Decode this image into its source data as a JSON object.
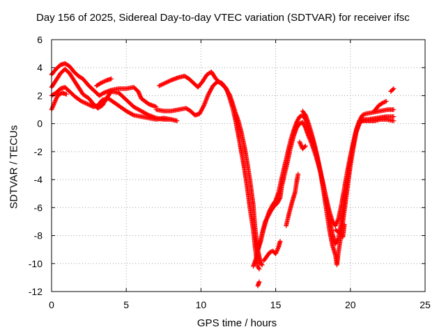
{
  "chart_data": {
    "type": "scatter",
    "title": "Day 156 of 2025, Sidereal Day-to-day VTEC variation (SDTVAR) for receiver ifsc",
    "xlabel": "GPS time / hours",
    "ylabel": "SDTVAR / TECUs",
    "xlim": [
      0,
      25
    ],
    "ylim": [
      -12,
      6
    ],
    "xticks": [
      0,
      5,
      10,
      15,
      20,
      25
    ],
    "yticks": [
      -12,
      -10,
      -8,
      -6,
      -4,
      -2,
      0,
      2,
      4,
      6
    ],
    "grid": true,
    "marker": "plus",
    "color": "#ff0000",
    "series": [
      {
        "points": [
          [
            0,
            3.5
          ],
          [
            0.3,
            3.9
          ],
          [
            0.6,
            4.2
          ],
          [
            0.9,
            4.3
          ],
          [
            1.2,
            4.1
          ],
          [
            1.5,
            3.7
          ],
          [
            1.8,
            3.4
          ],
          [
            2.1,
            3.2
          ],
          [
            2.5,
            2.7
          ],
          [
            2.9,
            2.3
          ],
          [
            3.2,
            2.0
          ],
          [
            3.5,
            2.2
          ],
          [
            4.0,
            2.4
          ],
          [
            4.5,
            2.5
          ],
          [
            5.0,
            2.5
          ],
          [
            5.5,
            2.6
          ],
          [
            5.8,
            2.3
          ],
          [
            6.0,
            1.8
          ],
          [
            6.5,
            1.4
          ],
          [
            7.0,
            1.2
          ]
        ]
      },
      {
        "points": [
          [
            0,
            2.6
          ],
          [
            0.3,
            3.1
          ],
          [
            0.6,
            3.6
          ],
          [
            0.9,
            3.9
          ],
          [
            1.2,
            3.6
          ],
          [
            1.5,
            3.1
          ],
          [
            1.8,
            2.6
          ],
          [
            2.1,
            2.1
          ],
          [
            2.5,
            1.8
          ],
          [
            2.8,
            1.4
          ],
          [
            3.1,
            1.1
          ],
          [
            3.4,
            1.3
          ],
          [
            3.8,
            2.0
          ],
          [
            4.0,
            2.3
          ],
          [
            4.5,
            2.2
          ],
          [
            5.0,
            1.7
          ],
          [
            5.5,
            1.2
          ],
          [
            6.0,
            0.9
          ],
          [
            6.5,
            0.6
          ],
          [
            7.0,
            0.4
          ],
          [
            7.5,
            0.3
          ],
          [
            8.0,
            0.3
          ]
        ]
      },
      {
        "points": [
          [
            0,
            2.0
          ],
          [
            0.3,
            2.2
          ],
          [
            0.6,
            2.5
          ],
          [
            0.9,
            2.6
          ],
          [
            1.2,
            2.3
          ],
          [
            1.6,
            1.9
          ],
          [
            2.0,
            1.6
          ],
          [
            2.4,
            1.4
          ],
          [
            2.8,
            1.2
          ],
          [
            3.1,
            1.3
          ],
          [
            3.4,
            1.7
          ],
          [
            3.8,
            1.8
          ],
          [
            4.2,
            1.5
          ],
          [
            4.6,
            1.2
          ],
          [
            5.0,
            0.9
          ],
          [
            5.5,
            0.6
          ],
          [
            6.0,
            0.5
          ],
          [
            6.5,
            0.4
          ],
          [
            7.0,
            0.3
          ],
          [
            7.5,
            0.4
          ],
          [
            8.0,
            0.3
          ],
          [
            8.4,
            0.2
          ]
        ]
      },
      {
        "points": [
          [
            0,
            1.0
          ],
          [
            0.2,
            1.5
          ],
          [
            0.4,
            2.0
          ],
          [
            0.7,
            2.2
          ],
          [
            1.0,
            2.1
          ]
        ]
      },
      {
        "points": [
          [
            3.0,
            2.7
          ],
          [
            3.3,
            2.9
          ],
          [
            3.7,
            3.1
          ],
          [
            4.0,
            3.2
          ]
        ]
      },
      {
        "points": [
          [
            7.2,
            2.7
          ],
          [
            7.6,
            2.9
          ],
          [
            8.0,
            3.1
          ],
          [
            8.5,
            3.3
          ],
          [
            8.9,
            3.4
          ],
          [
            9.2,
            3.2
          ],
          [
            9.5,
            2.9
          ],
          [
            9.8,
            2.6
          ],
          [
            10.1,
            3.0
          ],
          [
            10.4,
            3.5
          ],
          [
            10.7,
            3.7
          ],
          [
            11.0,
            3.2
          ],
          [
            11.3,
            2.9
          ],
          [
            11.6,
            2.6
          ],
          [
            11.9,
            2.1
          ],
          [
            12.1,
            1.5
          ],
          [
            12.3,
            0.8
          ],
          [
            12.5,
            0.2
          ],
          [
            12.7,
            -0.6
          ],
          [
            12.9,
            -1.6
          ],
          [
            13.1,
            -2.8
          ],
          [
            13.3,
            -4.2
          ],
          [
            13.5,
            -5.8
          ],
          [
            13.6,
            -7.2
          ],
          [
            13.7,
            -8.2
          ],
          [
            13.8,
            -9.0
          ],
          [
            13.9,
            -9.5
          ],
          [
            14.0,
            -10.0
          ],
          [
            14.1,
            -10.1
          ]
        ]
      },
      {
        "points": [
          [
            7.0,
            1.0
          ],
          [
            7.5,
            0.9
          ],
          [
            8.0,
            0.9
          ],
          [
            8.5,
            1.0
          ],
          [
            9.0,
            1.1
          ],
          [
            9.3,
            0.9
          ],
          [
            9.6,
            0.6
          ],
          [
            9.9,
            0.7
          ],
          [
            10.2,
            1.3
          ],
          [
            10.5,
            2.1
          ],
          [
            10.8,
            2.7
          ],
          [
            11.1,
            3.0
          ],
          [
            11.4,
            2.9
          ],
          [
            11.7,
            2.5
          ],
          [
            11.9,
            1.9
          ],
          [
            12.1,
            1.2
          ],
          [
            12.3,
            0.3
          ],
          [
            12.5,
            -0.8
          ],
          [
            12.7,
            -2.0
          ],
          [
            12.9,
            -3.2
          ],
          [
            13.1,
            -4.6
          ],
          [
            13.3,
            -6.2
          ],
          [
            13.5,
            -7.6
          ],
          [
            13.6,
            -8.6
          ],
          [
            13.7,
            -9.5
          ],
          [
            13.8,
            -10.2
          ],
          [
            13.9,
            -10.4
          ]
        ]
      },
      {
        "points": [
          [
            13.5,
            -10.2
          ],
          [
            13.7,
            -9.6
          ],
          [
            13.9,
            -8.7
          ],
          [
            14.1,
            -7.8
          ],
          [
            14.3,
            -7.0
          ],
          [
            14.5,
            -6.6
          ],
          [
            14.7,
            -6.2
          ],
          [
            14.9,
            -5.9
          ],
          [
            15.1,
            -5.7
          ],
          [
            15.3,
            -5.3
          ],
          [
            15.4,
            -4.5
          ],
          [
            15.6,
            -3.6
          ],
          [
            15.8,
            -2.7
          ],
          [
            16.0,
            -1.7
          ],
          [
            16.2,
            -0.9
          ],
          [
            16.4,
            -0.3
          ],
          [
            16.6,
            0.0
          ],
          [
            16.8,
            0.1
          ],
          [
            17.0,
            -0.3
          ],
          [
            17.2,
            -0.9
          ],
          [
            17.4,
            -1.4
          ],
          [
            17.6,
            -2.0
          ],
          [
            17.8,
            -2.7
          ],
          [
            18.0,
            -3.5
          ],
          [
            18.2,
            -4.4
          ],
          [
            18.4,
            -5.4
          ],
          [
            18.6,
            -6.3
          ],
          [
            18.8,
            -7.0
          ],
          [
            19.0,
            -7.3
          ],
          [
            19.2,
            -6.8
          ],
          [
            19.4,
            -5.8
          ],
          [
            19.6,
            -4.6
          ],
          [
            19.8,
            -3.4
          ],
          [
            20.0,
            -2.3
          ],
          [
            20.2,
            -1.3
          ],
          [
            20.4,
            -0.4
          ],
          [
            20.6,
            0.2
          ],
          [
            20.8,
            0.6
          ],
          [
            21.0,
            0.7
          ],
          [
            21.5,
            0.8
          ],
          [
            22.0,
            0.9
          ],
          [
            22.5,
            1.0
          ],
          [
            22.9,
            1.0
          ]
        ]
      },
      {
        "points": [
          [
            13.8,
            -9.0
          ],
          [
            14.0,
            -8.4
          ],
          [
            14.2,
            -7.5
          ],
          [
            14.4,
            -6.8
          ],
          [
            14.6,
            -6.2
          ],
          [
            14.8,
            -5.8
          ],
          [
            15.0,
            -5.5
          ],
          [
            15.2,
            -4.9
          ],
          [
            15.4,
            -3.9
          ],
          [
            15.6,
            -3.0
          ],
          [
            15.8,
            -2.1
          ],
          [
            16.0,
            -1.2
          ],
          [
            16.2,
            -0.5
          ],
          [
            16.4,
            0.1
          ],
          [
            16.6,
            0.5
          ],
          [
            16.8,
            0.6
          ],
          [
            17.0,
            0.3
          ],
          [
            17.2,
            -0.3
          ],
          [
            17.4,
            -0.9
          ],
          [
            17.6,
            -1.7
          ],
          [
            17.8,
            -2.5
          ],
          [
            18.0,
            -3.4
          ],
          [
            18.2,
            -4.5
          ],
          [
            18.4,
            -5.6
          ],
          [
            18.6,
            -6.8
          ],
          [
            18.8,
            -7.9
          ],
          [
            19.0,
            -8.6
          ],
          [
            19.2,
            -8.2
          ],
          [
            19.4,
            -7.0
          ],
          [
            19.6,
            -5.5
          ],
          [
            19.8,
            -4.0
          ],
          [
            20.0,
            -2.6
          ],
          [
            20.2,
            -1.5
          ],
          [
            20.4,
            -0.5
          ],
          [
            20.6,
            0.1
          ],
          [
            20.8,
            0.3
          ],
          [
            21.2,
            0.3
          ],
          [
            21.8,
            0.4
          ],
          [
            22.4,
            0.5
          ],
          [
            22.9,
            0.5
          ]
        ]
      },
      {
        "points": [
          [
            16.8,
            0.9
          ],
          [
            17.0,
            0.6
          ],
          [
            17.2,
            0.0
          ],
          [
            17.4,
            -0.7
          ],
          [
            17.6,
            -1.5
          ],
          [
            17.8,
            -2.4
          ],
          [
            18.0,
            -3.5
          ],
          [
            18.2,
            -4.8
          ],
          [
            18.4,
            -6.2
          ],
          [
            18.6,
            -7.6
          ],
          [
            18.8,
            -8.7
          ],
          [
            19.0,
            -9.4
          ],
          [
            19.1,
            -10.1
          ],
          [
            19.2,
            -9.2
          ],
          [
            19.4,
            -7.8
          ],
          [
            19.6,
            -6.2
          ],
          [
            19.8,
            -4.6
          ],
          [
            20.0,
            -3.0
          ],
          [
            20.2,
            -1.7
          ],
          [
            20.4,
            -0.6
          ],
          [
            20.6,
            0.0
          ],
          [
            20.8,
            0.2
          ],
          [
            21.2,
            0.2
          ],
          [
            21.6,
            0.2
          ],
          [
            22.0,
            0.3
          ],
          [
            22.4,
            0.3
          ],
          [
            22.9,
            0.2
          ]
        ]
      },
      {
        "points": [
          [
            14.2,
            -9.8
          ],
          [
            14.4,
            -9.5
          ],
          [
            14.6,
            -9.2
          ],
          [
            14.8,
            -9.1
          ],
          [
            15.0,
            -9.3
          ],
          [
            15.2,
            -8.8
          ],
          [
            15.3,
            -8.4
          ]
        ]
      },
      {
        "points": [
          [
            13.8,
            -11.6
          ],
          [
            13.9,
            -11.3
          ]
        ]
      },
      {
        "points": [
          [
            15.7,
            -7.3
          ],
          [
            15.9,
            -6.4
          ],
          [
            16.1,
            -5.6
          ],
          [
            16.3,
            -4.9
          ],
          [
            16.4,
            -4.2
          ],
          [
            16.5,
            -3.6
          ]
        ]
      },
      {
        "points": [
          [
            16.6,
            -1.3
          ],
          [
            16.8,
            -1.8
          ],
          [
            17.0,
            -1.6
          ]
        ]
      },
      {
        "points": [
          [
            19.0,
            -7.6
          ],
          [
            19.3,
            -7.8
          ],
          [
            19.5,
            -8.1
          ],
          [
            19.6,
            -7.2
          ]
        ]
      },
      {
        "points": [
          [
            21.6,
            0.9
          ],
          [
            21.9,
            1.3
          ],
          [
            22.2,
            1.5
          ],
          [
            22.4,
            1.6
          ]
        ]
      },
      {
        "points": [
          [
            22.7,
            2.3
          ],
          [
            22.9,
            2.5
          ]
        ]
      }
    ]
  }
}
